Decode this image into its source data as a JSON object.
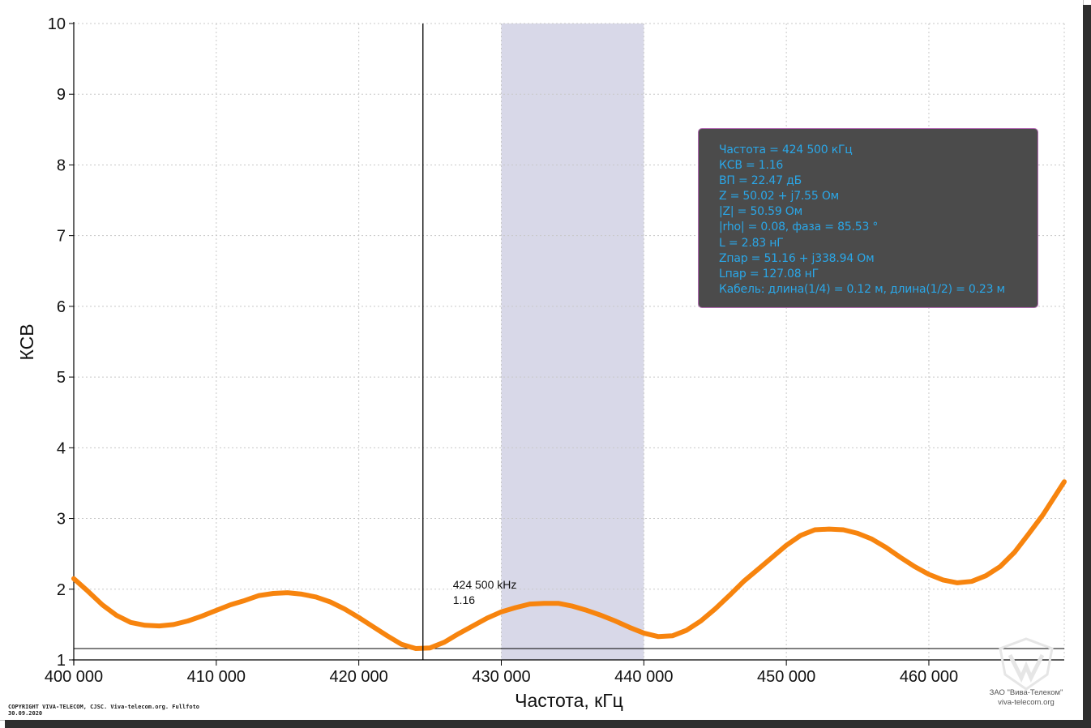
{
  "chart_data": {
    "type": "line",
    "title": "",
    "xlabel": "Частота, кГц",
    "ylabel": "КСВ",
    "xlim": [
      400000,
      469500
    ],
    "ylim": [
      1,
      10
    ],
    "x_ticks": [
      400000,
      410000,
      420000,
      430000,
      440000,
      450000,
      460000
    ],
    "x_tick_labels": [
      "400 000",
      "410 000",
      "420 000",
      "430 000",
      "440 000",
      "450 000",
      "460 000"
    ],
    "y_ticks": [
      1,
      2,
      3,
      4,
      5,
      6,
      7,
      8,
      9,
      10
    ],
    "y_tick_labels": [
      "1",
      "2",
      "3",
      "4",
      "5",
      "6",
      "7",
      "8",
      "9",
      "10"
    ],
    "grid": true,
    "highlight_band": {
      "x_from": 430000,
      "x_to": 440000,
      "color": "#d8d8e8"
    },
    "reference_line_y": 1.16,
    "series": [
      {
        "name": "",
        "color": "#f7840e",
        "x": [
          400000,
          401000,
          402000,
          403000,
          404000,
          405000,
          406000,
          407000,
          408000,
          409000,
          410000,
          411000,
          412000,
          413000,
          414000,
          415000,
          416000,
          417000,
          418000,
          419000,
          420000,
          421000,
          422000,
          423000,
          424000,
          425000,
          426000,
          427000,
          428000,
          429000,
          430000,
          431000,
          432000,
          433000,
          434000,
          435000,
          436000,
          437000,
          438000,
          439000,
          440000,
          441000,
          442000,
          443000,
          444000,
          445000,
          446000,
          447000,
          448000,
          449000,
          450000,
          451000,
          452000,
          453000,
          454000,
          455000,
          456000,
          457000,
          458000,
          459000,
          460000,
          461000,
          462000,
          463000,
          464000,
          465000,
          466000,
          467000,
          468000,
          469500
        ],
        "y": [
          2.15,
          1.97,
          1.78,
          1.63,
          1.53,
          1.49,
          1.48,
          1.5,
          1.55,
          1.62,
          1.7,
          1.78,
          1.84,
          1.91,
          1.94,
          1.95,
          1.93,
          1.89,
          1.82,
          1.72,
          1.6,
          1.47,
          1.34,
          1.22,
          1.16,
          1.17,
          1.25,
          1.37,
          1.48,
          1.59,
          1.68,
          1.74,
          1.79,
          1.8,
          1.8,
          1.76,
          1.7,
          1.63,
          1.55,
          1.46,
          1.38,
          1.33,
          1.34,
          1.42,
          1.55,
          1.72,
          1.91,
          2.11,
          2.28,
          2.45,
          2.62,
          2.76,
          2.84,
          2.85,
          2.84,
          2.79,
          2.71,
          2.59,
          2.45,
          2.32,
          2.21,
          2.13,
          2.09,
          2.11,
          2.19,
          2.32,
          2.52,
          2.78,
          3.05,
          3.52
        ]
      }
    ],
    "cursor": {
      "x": 424500,
      "label_freq": "424 500 kHz",
      "label_value": "1.16"
    }
  },
  "info_panel": {
    "lines": [
      "Частота = 424 500 кГц",
      "КСВ = 1.16",
      "ВП = 22.47 дБ",
      "Z = 50.02 + j7.55 Ом",
      "|Z| = 50.59 Ом",
      "|rho| = 0.08, фаза = 85.53 °",
      "L = 2.83 нГ",
      "Zпар = 51.16 + j338.94 Ом",
      "Lпар = 127.08 нГ",
      "Кабель: длина(1/4) = 0.12 м, длина(1/2) = 0.23 м"
    ],
    "text_color": "#2aa7e8",
    "background": "#4b4b4b",
    "border_color": "#b36ab3"
  },
  "footer": {
    "copyright_line1": "COPYRIGHT VIVA-TELECOM, CJSC. Viva-telecom.org. Fullfoto",
    "copyright_line2": "30.09.2020",
    "watermark_line1": "ЗАО \"Вива-Телеком\"",
    "watermark_line2": "viva-telecom.org"
  }
}
